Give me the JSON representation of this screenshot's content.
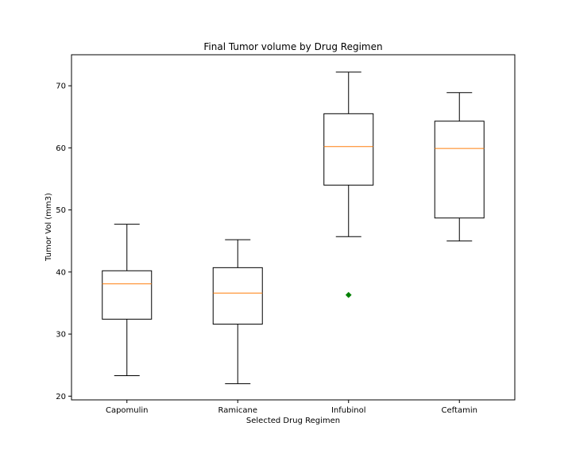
{
  "chart_data": {
    "type": "box",
    "title": "Final Tumor volume by Drug Regimen",
    "xlabel": "Selected Drug Regimen",
    "ylabel": "Tumor Vol (mm3)",
    "categories": [
      "Capomulin",
      "Ramicane",
      "Infubinol",
      "Ceftamin"
    ],
    "ylim": [
      19.4,
      75.0
    ],
    "yticks": [
      20,
      30,
      40,
      50,
      60,
      70
    ],
    "grid": false,
    "boxes": [
      {
        "category": "Capomulin",
        "whisker_low": 23.3,
        "q1": 32.4,
        "median": 38.1,
        "q3": 40.2,
        "whisker_high": 47.7,
        "outliers": []
      },
      {
        "category": "Ramicane",
        "whisker_low": 22.0,
        "q1": 31.6,
        "median": 36.6,
        "q3": 40.7,
        "whisker_high": 45.2,
        "outliers": []
      },
      {
        "category": "Infubinol",
        "whisker_low": 45.7,
        "q1": 54.0,
        "median": 60.2,
        "q3": 65.5,
        "whisker_high": 72.2,
        "outliers": [
          36.3
        ]
      },
      {
        "category": "Ceftamin",
        "whisker_low": 45.0,
        "q1": 48.7,
        "median": 59.9,
        "q3": 64.3,
        "whisker_high": 68.9,
        "outliers": []
      }
    ],
    "colors": {
      "box": "#000000",
      "median": "#ff7f0e",
      "outlier": "#008000"
    }
  }
}
